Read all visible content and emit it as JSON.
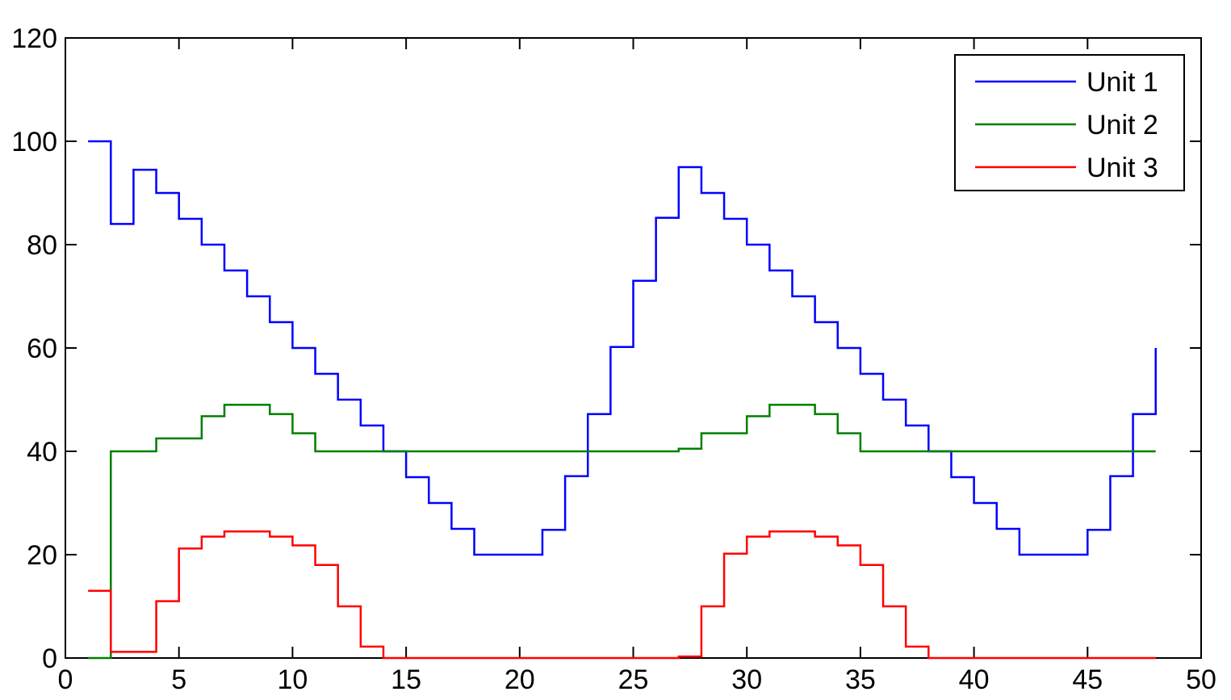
{
  "chart_data": {
    "type": "line",
    "step": true,
    "xlim": [
      0,
      50
    ],
    "ylim": [
      0,
      120
    ],
    "xticks": [
      0,
      5,
      10,
      15,
      20,
      25,
      30,
      35,
      40,
      45,
      50
    ],
    "yticks": [
      0,
      20,
      40,
      60,
      80,
      100,
      120
    ],
    "grid": false,
    "legend_position": "top-right",
    "x": [
      1,
      2,
      3,
      4,
      5,
      6,
      7,
      8,
      9,
      10,
      11,
      12,
      13,
      14,
      15,
      16,
      17,
      18,
      19,
      20,
      21,
      22,
      23,
      24,
      25,
      26,
      27,
      28,
      29,
      30,
      31,
      32,
      33,
      34,
      35,
      36,
      37,
      38,
      39,
      40,
      41,
      42,
      43,
      44,
      45,
      46,
      47,
      48
    ],
    "series": [
      {
        "name": "Unit 1",
        "color": "#0000ff",
        "values": [
          100,
          84,
          94.5,
          90,
          85,
          80,
          75,
          70,
          65,
          60,
          55,
          50,
          45,
          40,
          35,
          30,
          25,
          20,
          20,
          20,
          24.8,
          35.2,
          47.2,
          60.2,
          73,
          85.2,
          95,
          90,
          85,
          80,
          75,
          70,
          65,
          60,
          55,
          50,
          45,
          40,
          35,
          30,
          25,
          20,
          20,
          20,
          24.8,
          35.2,
          47.2,
          60
        ]
      },
      {
        "name": "Unit 2",
        "color": "#007f00",
        "values": [
          0,
          40,
          40,
          42.5,
          42.5,
          46.8,
          49,
          49,
          47.2,
          43.5,
          40,
          40,
          40,
          40,
          40,
          40,
          40,
          40,
          40,
          40,
          40,
          40,
          40,
          40,
          40,
          40,
          40.5,
          43.5,
          43.5,
          46.8,
          49,
          49,
          47.2,
          43.5,
          40,
          40,
          40,
          40,
          40,
          40,
          40,
          40,
          40,
          40,
          40,
          40,
          40,
          40
        ]
      },
      {
        "name": "Unit 3",
        "color": "#ff0000",
        "values": [
          13,
          1.2,
          1.2,
          11,
          21.2,
          23.5,
          24.5,
          24.5,
          23.5,
          21.8,
          18,
          10,
          2.2,
          0,
          0,
          0,
          0,
          0,
          0,
          0,
          0,
          0,
          0,
          0,
          0,
          0,
          0.3,
          10,
          20.2,
          23.5,
          24.5,
          24.5,
          23.5,
          21.8,
          18,
          10,
          2.2,
          0,
          0,
          0,
          0,
          0,
          0,
          0,
          0,
          0,
          0,
          0
        ]
      }
    ]
  }
}
